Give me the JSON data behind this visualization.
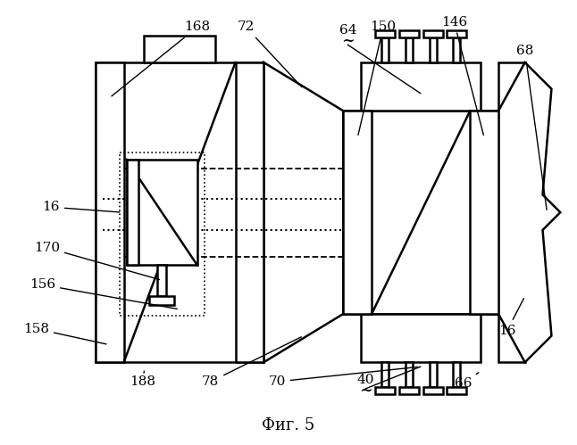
{
  "title": "Фиг. 5",
  "bg_color": "#ffffff",
  "line_color": "#000000",
  "figsize": [
    6.46,
    4.99
  ],
  "dpi": 100,
  "lw_main": 1.8,
  "lw_thin": 0.8
}
